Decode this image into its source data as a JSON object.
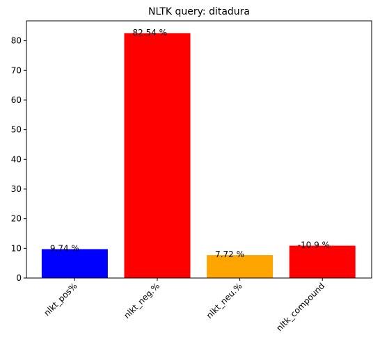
{
  "chart_data": {
    "type": "bar",
    "title": "NLTK query: ditadura",
    "xlabel": "",
    "ylabel": "",
    "categories": [
      "nlkt_pos%",
      "nlkt_neg.%",
      "nlkt_neu.%",
      "nltk_compound"
    ],
    "values": [
      9.74,
      82.54,
      7.72,
      10.9
    ],
    "bar_colors": [
      "#0000ff",
      "#ff0000",
      "#ffa500",
      "#ff0000"
    ],
    "data_labels": [
      "9.74 %",
      "82.54 %",
      "7.72 %",
      "-10.9 %"
    ],
    "ylim": [
      0,
      86.7
    ],
    "yticks": [
      0,
      10,
      20,
      30,
      40,
      50,
      60,
      70,
      80
    ],
    "grid": false,
    "x_tick_rotation": 45
  }
}
